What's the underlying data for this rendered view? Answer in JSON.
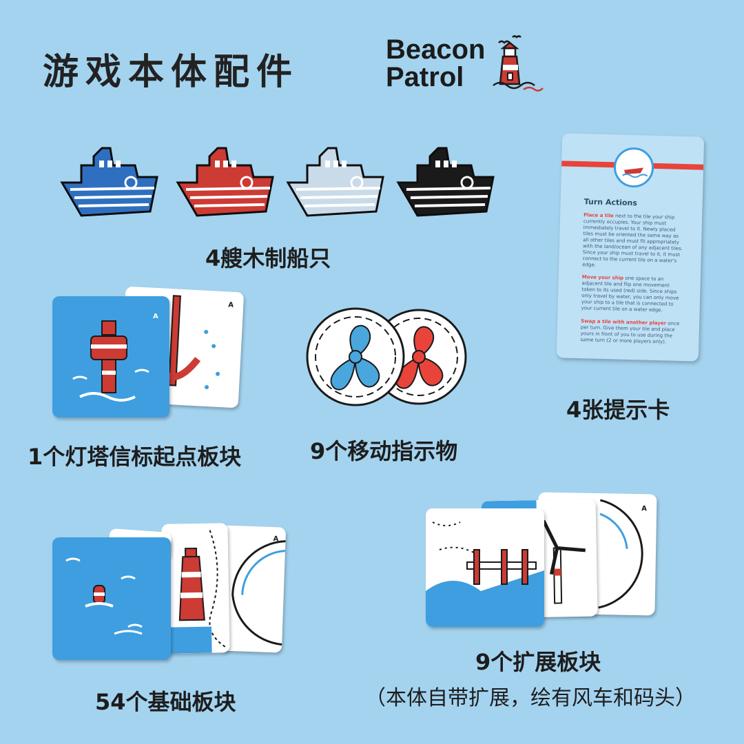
{
  "header": {
    "title": "游戏本体配件",
    "logo_line1": "Beacon",
    "logo_line2": "Patrol"
  },
  "components": {
    "ships_label": "4艘木制船只",
    "ships": [
      {
        "name": "blue",
        "color": "#2f6fc0"
      },
      {
        "name": "red",
        "color": "#cc3b34"
      },
      {
        "name": "white",
        "color": "#c9dbe8"
      },
      {
        "name": "black",
        "color": "#1a1a1a"
      }
    ],
    "start_tile_label": "1个灯塔信标起点板块",
    "movement_label": "9个移动指示物",
    "reference_label": "4张提示卡",
    "base_tiles_label": "54个基础板块",
    "expansion_label": "9个扩展板块",
    "expansion_note": "（本体自带扩展，绘有风车和码头）"
  },
  "reference_card": {
    "heading": "Turn Actions",
    "para1_lead": "Place a tile",
    "para1_text": " next to the tile your ship currently occupies. Your ship must immediately travel to it. Newly placed tiles must be oriented the same way as all other tiles and must fit appropriately with the land/ocean of any adjacent tiles. Since your ship must travel to it, it must connect to the current tile on a water's edge.",
    "para2_lead": "Move your ship",
    "para2_text": " one space to an adjacent tile and flip one movement token to its used (red) side. Since ships only travel by water, you can only move your ship to a tile that is connected to your current tile on a water edge.",
    "para3_lead": "Swap a tile with another player",
    "para3_text": " once per turn. Give them your tile and place yours in front of you to use during the same turn (2 or more players only)."
  },
  "tile_marks": {
    "letter": "A"
  },
  "colors": {
    "background": "#a4d3ef",
    "ocean_blue": "#3e9ee0",
    "beacon_red": "#cc3b34",
    "propeller_blue": "#4aa7dd",
    "propeller_red": "#e8443a"
  }
}
